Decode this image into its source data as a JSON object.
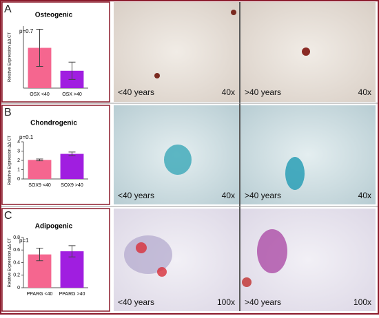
{
  "panel_letters": [
    "A",
    "B",
    "C"
  ],
  "chart_data": [
    {
      "type": "bar",
      "title": "Osteogenic",
      "annotation": "p=0.7",
      "y_label": "Relative Expression ΔΔ CT",
      "categories": [
        "OSX <40",
        "OSX >40"
      ],
      "values": [
        65,
        28
      ],
      "errors": [
        30,
        14
      ],
      "colors": [
        "#f5668f",
        "#a01ee0"
      ],
      "ylim": [
        0,
        100
      ]
    },
    {
      "type": "bar",
      "title": "Chondrogenic",
      "annotation": "p=0.1",
      "y_label": "Relative Expression ΔΔ CT",
      "categories": [
        "SOX9 <40",
        "SOX9 >40"
      ],
      "values": [
        2.05,
        2.7
      ],
      "errors": [
        0.1,
        0.2
      ],
      "colors": [
        "#f5668f",
        "#a01ee0"
      ],
      "ylim": [
        0,
        4
      ],
      "yticks": [
        0,
        1,
        2,
        3,
        4
      ]
    },
    {
      "type": "bar",
      "title": "Adipogenic",
      "annotation": "p=1",
      "y_label": "Relative Expression ΔΔ CT",
      "categories": [
        "PPARG <40",
        "PPARG >40"
      ],
      "values": [
        0.53,
        0.58
      ],
      "errors": [
        0.1,
        0.09
      ],
      "colors": [
        "#f5668f",
        "#a01ee0"
      ],
      "ylim": [
        0,
        0.8
      ],
      "yticks": [
        0,
        0.2,
        0.4,
        0.6,
        0.8
      ]
    }
  ],
  "images": [
    [
      {
        "age": "<40 years",
        "magnification": "40x"
      },
      {
        "age": ">40 years",
        "magnification": "40x"
      }
    ],
    [
      {
        "age": "<40 years",
        "magnification": "40x"
      },
      {
        "age": ">40 years",
        "magnification": "40x"
      }
    ],
    [
      {
        "age": "<40 years",
        "magnification": "100x"
      },
      {
        "age": ">40 years",
        "magnification": "100x"
      }
    ]
  ]
}
